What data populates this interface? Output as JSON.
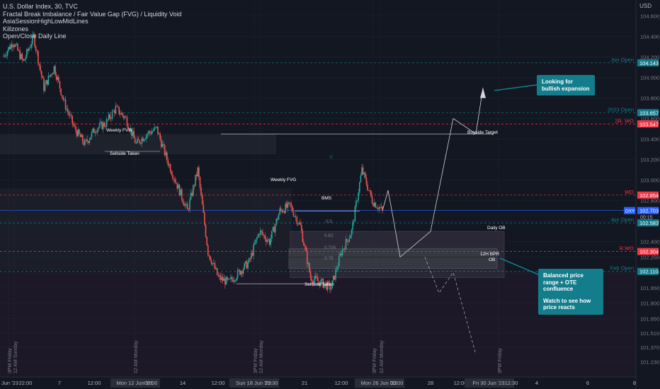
{
  "legend": {
    "symbol": "U.S. Dollar Index, 30, TVC",
    "ind1": "Fractal Break Imbalance / Fair Value Gap (FVG) / Liquidity Void",
    "ind2": "AsiaSessionHighLowMidLines",
    "ind3": "Killzones",
    "ind4": "Open/Close Daily Line"
  },
  "currency": "USD",
  "colors": {
    "bg": "#131722",
    "up": "#26a69a",
    "down": "#ef5350",
    "teal": "#137d8c",
    "red": "#f23645",
    "grid": "#1e222d"
  },
  "price_axis": [
    "104.600",
    "104.400",
    "104.200",
    "104.000",
    "103.800",
    "103.600",
    "103.400",
    "103.200",
    "103.000",
    "102.800",
    "102.600",
    "102.400",
    "102.250",
    "102.100",
    "101.950",
    "101.800",
    "101.650",
    "101.510",
    "101.370",
    "101.230"
  ],
  "time_axis": [
    "Jun '23",
    "22:00",
    "7",
    "12:00",
    "Mon 12 Jun '23",
    "00:00",
    "14",
    "12:00",
    "Sun 18 Jun '23",
    "21:30",
    "21",
    "12:00",
    "Mon 26 Jun '23",
    "00:00",
    "28",
    "12:00",
    "Fri 30 Jun '23",
    "12:30",
    "4",
    "6",
    "8"
  ],
  "vertical_labels": [
    "3PM Friday",
    "12 AM Sunday",
    "12 AM Monday",
    "3PM Friday",
    "12 AM Monday",
    "3PM Friday",
    "12 AM Monday",
    "3PM Friday"
  ],
  "levels": [
    {
      "label": "Jun Open",
      "value": "104.143",
      "color": "#137d8c"
    },
    {
      "label": "2023 Open",
      "value": "103.657",
      "color": "#137d8c"
    },
    {
      "label": "2R. WO",
      "value": "103.547",
      "color": "#f23645"
    },
    {
      "label": "WO",
      "value": "102.854",
      "color": "#f23645"
    },
    {
      "label": "DXY",
      "value": "102.703",
      "color": "#2962ff"
    },
    {
      "label": "Apr Open",
      "value": "102.583",
      "color": "#137d8c"
    },
    {
      "label": "R.WO",
      "value": "102.304",
      "color": "#f23645"
    },
    {
      "label": "Feb Open",
      "value": "102.110",
      "color": "#137d8c"
    }
  ],
  "countdown": "00:15",
  "annotations": [
    "Buyside Target",
    "Weekly FVG",
    "Weekly FVG",
    "Sellside Taken",
    "Sellside Taken",
    "BMS",
    "Daily OB",
    "12H BPR",
    "OB",
    "0",
    "0.5",
    "0.62",
    "0.705",
    "0.79",
    "1"
  ],
  "callouts": [
    {
      "text": "Looking for bullish expansion"
    },
    {
      "text": "Balanced price range + OTE confluence",
      "text2": "Watch to see how price reacts"
    }
  ],
  "chart_data": {
    "type": "line",
    "title": "U.S. Dollar Index, 30, TVC",
    "ylim": [
      101.15,
      104.7
    ],
    "series": [
      {
        "name": "DXY",
        "values": [
          104.2,
          104.35,
          104.15,
          104.4,
          103.9,
          104.1,
          103.75,
          103.5,
          103.35,
          103.5,
          103.55,
          103.7,
          103.6,
          103.35,
          103.45,
          103.5,
          103.2,
          102.95,
          102.7,
          103.1,
          102.3,
          102.05,
          102.0,
          102.1,
          102.2,
          102.5,
          102.4,
          102.7,
          102.75,
          102.55,
          102.05,
          102.0,
          101.95,
          102.3,
          102.5,
          103.1,
          102.8,
          102.7
        ]
      }
    ],
    "projection": [
      102.7,
      102.9,
      102.6,
      102.25,
      102.5,
      103.6,
      103.45,
      103.9
    ],
    "alt_projection": [
      102.25,
      101.9,
      102.1,
      101.3
    ]
  }
}
